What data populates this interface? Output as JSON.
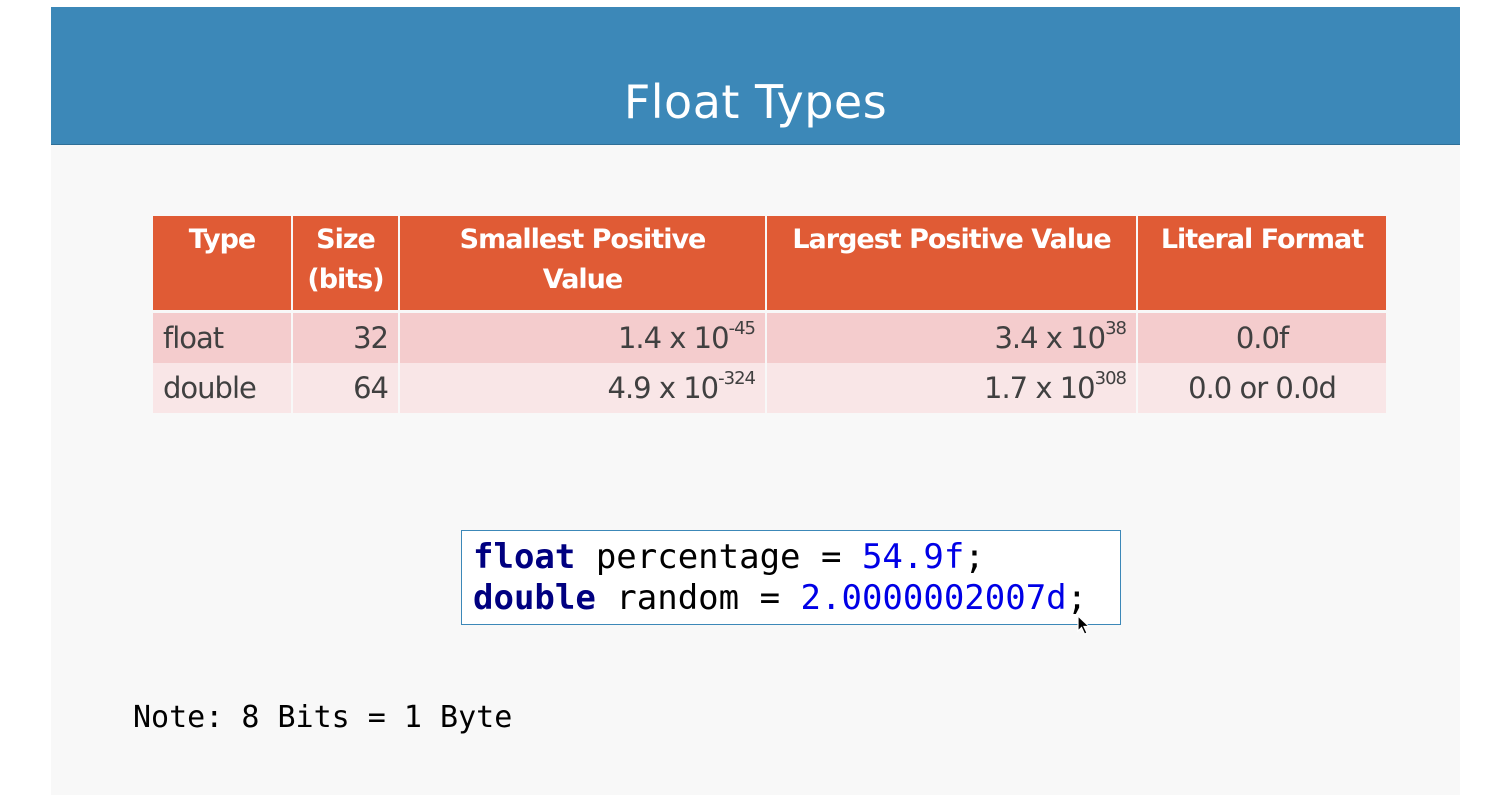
{
  "slide": {
    "title": "Float Types"
  },
  "table": {
    "headers": {
      "type": "Type",
      "size_line1": "Size",
      "size_line2": "(bits)",
      "smallest_line1": "Smallest Positive",
      "smallest_line2": "Value",
      "largest": "Largest Positive Value",
      "literal": "Literal Format"
    },
    "rows": [
      {
        "type": "float",
        "size": "32",
        "smallest_base": "1.4 x 10",
        "smallest_exp": "-45",
        "largest_base": "3.4 x 10",
        "largest_exp": "38",
        "literal": "0.0f"
      },
      {
        "type": "double",
        "size": "64",
        "smallest_base": "4.9 x 10",
        "smallest_exp": "-324",
        "largest_base": "1.7 x 10",
        "largest_exp": "308",
        "literal": "0.0 or 0.0d"
      }
    ]
  },
  "code": {
    "line1": {
      "keyword": "float",
      "text": " percentage = ",
      "value": "54.9f",
      "end": ";"
    },
    "line2": {
      "keyword": "double",
      "text": " random = ",
      "value": "2.0000002007d",
      "end": ";"
    }
  },
  "note": "Note: 8 Bits = 1 Byte",
  "colors": {
    "title_bar": "#3c88b8",
    "table_header": "#e05b35",
    "row_odd": "#f4cccd",
    "row_even": "#f9e6e7",
    "keyword": "#000080",
    "number": "#0000e6"
  },
  "icons": {
    "cursor": "mouse-pointer-icon"
  }
}
